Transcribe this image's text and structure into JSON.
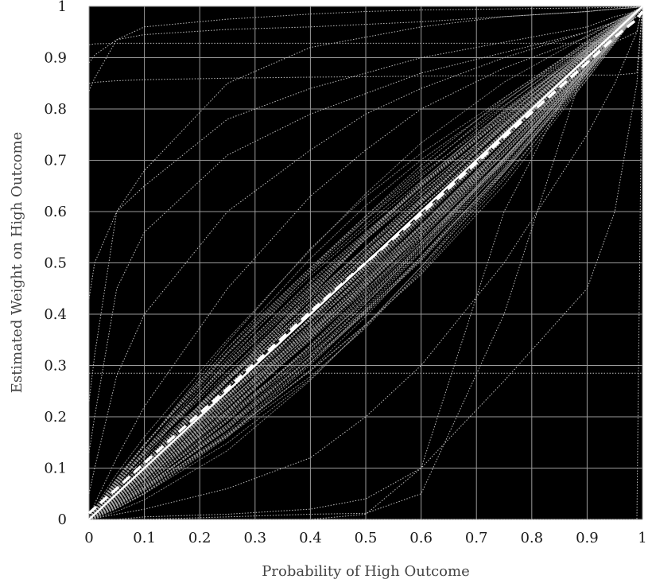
{
  "chart_data": {
    "type": "line",
    "title": "",
    "xlabel": "Probability of High Outcome",
    "ylabel": "Estimated Weight on High Outcome",
    "xlim": [
      0,
      1
    ],
    "ylim": [
      0,
      1
    ],
    "xticks": [
      "0",
      "0.1",
      "0.2",
      "0.3",
      "0.4",
      "0.5",
      "0.6",
      "0.7",
      "0.8",
      "0.9",
      "1"
    ],
    "yticks": [
      "0",
      "0.1",
      "0.2",
      "0.3",
      "0.4",
      "0.5",
      "0.6",
      "0.7",
      "0.8",
      "0.9",
      "1"
    ],
    "grid": true,
    "legend": "none",
    "colors": {
      "plot_background": "#000000",
      "grid": "#9a9a9a",
      "individual_lines": "#bdbdbd",
      "reference_lines": "#ffffff"
    },
    "x": [
      0,
      0.01,
      0.05,
      0.1,
      0.25,
      0.4,
      0.5,
      0.6,
      0.75,
      0.9,
      0.95,
      0.99,
      1
    ],
    "series": [
      {
        "style": "solid-reference",
        "values": [
          0,
          0.01,
          0.05,
          0.1,
          0.25,
          0.4,
          0.5,
          0.6,
          0.75,
          0.9,
          0.95,
          0.99,
          1
        ]
      },
      {
        "style": "dashed-average",
        "values": [
          0.012,
          0.022,
          0.06,
          0.11,
          0.255,
          0.405,
          0.5,
          0.595,
          0.745,
          0.89,
          0.94,
          0.975,
          0.99
        ]
      },
      {
        "style": "dotted",
        "values": [
          0.89,
          0.905,
          0.935,
          0.96,
          0.975,
          0.985,
          0.99,
          0.993,
          0.995,
          0.997,
          0.998,
          0.999,
          1
        ]
      },
      {
        "style": "dotted",
        "values": [
          0.835,
          0.86,
          0.935,
          0.945,
          0.955,
          0.96,
          0.965,
          0.97,
          0.98,
          0.99,
          0.995,
          0.998,
          1
        ]
      },
      {
        "style": "dotted",
        "values": [
          0.925,
          0.927,
          0.928,
          0.928,
          0.928,
          0.928,
          0.928,
          0.928,
          0.928,
          0.928,
          0.93,
          0.95,
          1
        ]
      },
      {
        "style": "dotted",
        "values": [
          0.85,
          0.852,
          0.855,
          0.857,
          0.86,
          0.862,
          0.863,
          0.864,
          0.865,
          0.866,
          0.866,
          0.87,
          1
        ]
      },
      {
        "style": "dotted",
        "values": [
          0.23,
          0.32,
          0.6,
          0.68,
          0.85,
          0.92,
          0.94,
          0.96,
          0.98,
          0.99,
          0.995,
          0.998,
          1
        ]
      },
      {
        "style": "dotted",
        "values": [
          0.43,
          0.5,
          0.6,
          0.65,
          0.78,
          0.84,
          0.87,
          0.9,
          0.93,
          0.96,
          0.98,
          0.99,
          1
        ]
      },
      {
        "style": "dotted",
        "values": [
          0.13,
          0.2,
          0.45,
          0.56,
          0.71,
          0.79,
          0.83,
          0.87,
          0.91,
          0.95,
          0.97,
          0.99,
          1
        ]
      },
      {
        "style": "dotted",
        "values": [
          0.05,
          0.1,
          0.28,
          0.4,
          0.6,
          0.72,
          0.79,
          0.84,
          0.9,
          0.95,
          0.97,
          0.99,
          1
        ]
      },
      {
        "style": "dotted",
        "values": [
          0,
          0.03,
          0.12,
          0.22,
          0.45,
          0.63,
          0.72,
          0.8,
          0.88,
          0.94,
          0.97,
          0.99,
          1
        ]
      },
      {
        "style": "dotted",
        "values": [
          0,
          0,
          0,
          0,
          0.005,
          0.01,
          0.012,
          0.05,
          0.4,
          0.9,
          0.95,
          0.98,
          1
        ]
      },
      {
        "style": "dotted",
        "values": [
          0,
          0,
          0,
          0,
          0,
          0,
          0.01,
          0.1,
          0.27,
          0.45,
          0.6,
          0.85,
          1
        ]
      },
      {
        "style": "dotted",
        "values": [
          0,
          0,
          0,
          0,
          0,
          0,
          0,
          0,
          0,
          0,
          0,
          0,
          1
        ]
      },
      {
        "style": "dotted",
        "values": [
          0,
          0,
          0,
          0.005,
          0.01,
          0.02,
          0.04,
          0.1,
          0.6,
          0.91,
          0.95,
          0.98,
          1
        ]
      },
      {
        "style": "dotted",
        "values": [
          0,
          0.002,
          0.01,
          0.02,
          0.06,
          0.12,
          0.2,
          0.3,
          0.5,
          0.75,
          0.85,
          0.95,
          1
        ]
      },
      {
        "style": "dotted",
        "values": [
          0.285,
          0.285,
          0.285,
          0.285,
          0.285,
          0.285,
          0.285,
          0.285,
          0.285,
          0.285,
          0.285,
          0.285,
          0.285
        ]
      }
    ]
  }
}
